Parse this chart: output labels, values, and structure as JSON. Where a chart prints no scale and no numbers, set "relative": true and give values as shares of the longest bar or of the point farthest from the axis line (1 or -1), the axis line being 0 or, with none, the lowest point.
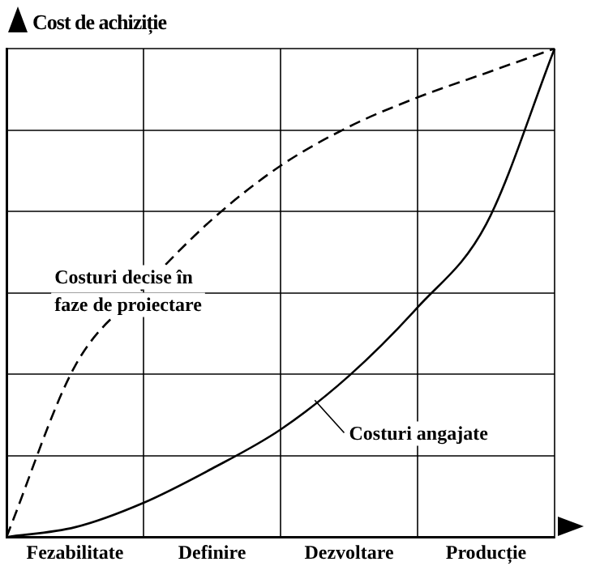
{
  "chart_data": {
    "type": "line",
    "ylabel": "Cost de achiziție",
    "relative": true,
    "legend": false,
    "grid": true,
    "marker": "none",
    "categories": [
      null,
      "Fezabilitate",
      null,
      "Definire",
      null,
      "Dezvoltare",
      null,
      "Producție",
      null
    ],
    "series": [
      {
        "name": "Costuri decise în faze de proiectare",
        "color": "#000000",
        "line_style": "dashed",
        "values": [
          0,
          0.35,
          0.51,
          0.65,
          0.76,
          0.84,
          0.9,
          0.95,
          1
        ]
      },
      {
        "name": "Costuri angajate",
        "color": "#000000",
        "line_style": "solid",
        "values": [
          0,
          0.02,
          0.07,
          0.14,
          0.22,
          0.33,
          0.47,
          0.64,
          1
        ]
      }
    ]
  }
}
